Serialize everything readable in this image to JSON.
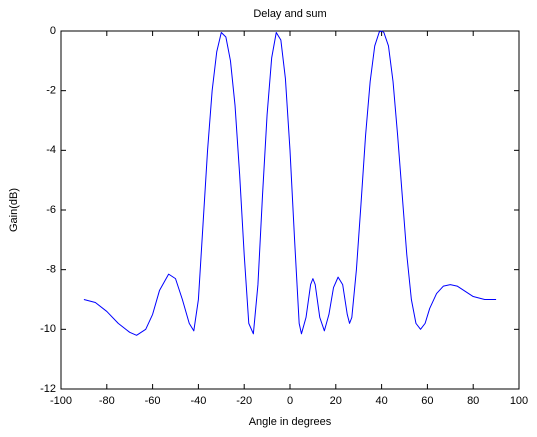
{
  "chart_data": {
    "type": "line",
    "title": "Delay and sum",
    "xlabel": "Angle in degrees",
    "ylabel": "Gain(dB)",
    "x": [
      -90,
      -85,
      -80,
      -75,
      -70,
      -67,
      -63,
      -60,
      -57,
      -53,
      -50,
      -47,
      -44,
      -42,
      -40,
      -38,
      -36,
      -34,
      -32,
      -30,
      -28,
      -26,
      -24,
      -22,
      -20,
      -18,
      -16,
      -14,
      -12,
      -10,
      -8,
      -6,
      -4,
      -2,
      0,
      2,
      4,
      5,
      7,
      9,
      10,
      11,
      13,
      15,
      17,
      19,
      21,
      23,
      25,
      26,
      27,
      29,
      31,
      33,
      35,
      37,
      39,
      40,
      41,
      43,
      45,
      47,
      49,
      51,
      53,
      55,
      57,
      59,
      61,
      64,
      67,
      70,
      73,
      77,
      80,
      85,
      90
    ],
    "values": [
      -9.0,
      -9.1,
      -9.4,
      -9.8,
      -10.1,
      -10.2,
      -10.0,
      -9.5,
      -8.7,
      -8.15,
      -8.3,
      -9.0,
      -9.8,
      -10.05,
      -9.0,
      -6.5,
      -4.0,
      -2.0,
      -0.7,
      -0.05,
      -0.2,
      -1.0,
      -2.5,
      -4.8,
      -7.5,
      -9.8,
      -10.15,
      -8.5,
      -5.5,
      -2.8,
      -0.9,
      -0.05,
      -0.3,
      -1.6,
      -4.0,
      -7.0,
      -9.8,
      -10.15,
      -9.6,
      -8.5,
      -8.3,
      -8.5,
      -9.6,
      -10.05,
      -9.5,
      -8.6,
      -8.25,
      -8.5,
      -9.5,
      -9.8,
      -9.6,
      -8.0,
      -5.8,
      -3.5,
      -1.7,
      -0.5,
      -0.03,
      0,
      -0.05,
      -0.5,
      -1.7,
      -3.5,
      -5.5,
      -7.5,
      -9.0,
      -9.8,
      -10.0,
      -9.8,
      -9.3,
      -8.8,
      -8.55,
      -8.5,
      -8.55,
      -8.75,
      -8.9,
      -9.0,
      -9.0
    ],
    "color": "#0000ff",
    "xlim": [
      -100,
      100
    ],
    "xticks": [
      -100,
      -80,
      -60,
      -40,
      -20,
      0,
      20,
      40,
      60,
      80,
      100
    ],
    "ylim": [
      -12,
      0
    ],
    "yticks": [
      -12,
      -10,
      -8,
      -6,
      -4,
      -2,
      0
    ],
    "grid": false
  }
}
